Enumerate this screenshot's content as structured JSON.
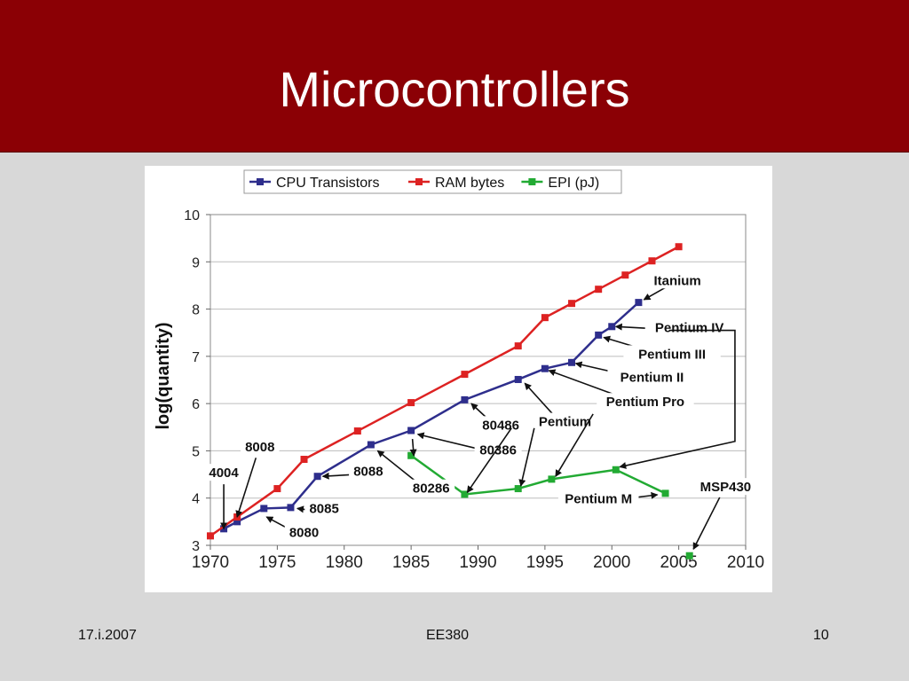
{
  "slide": {
    "title": "Microcontrollers",
    "footer_left": "17.i.2007",
    "footer_center": "EE380",
    "footer_right": "10"
  },
  "colors": {
    "header_bg": "#8b0005",
    "cpu": "#2e2e8c",
    "ram": "#dd2222",
    "epi": "#22aa33"
  },
  "chart_data": {
    "type": "line",
    "ylabel": "log(quantity)",
    "xlabel": "",
    "xlim": [
      1970,
      2010
    ],
    "ylim": [
      3,
      10
    ],
    "x_ticks": [
      "1970",
      "1975",
      "1980",
      "1985",
      "1990",
      "1995",
      "2000",
      "2005",
      "2010"
    ],
    "y_ticks": [
      "3",
      "4",
      "5",
      "6",
      "7",
      "8",
      "9",
      "10"
    ],
    "grid": true,
    "legend": "top",
    "series": [
      {
        "name": "CPU Transistors",
        "color": "#2e2e8c",
        "points": [
          [
            1971,
            3.35
          ],
          [
            1972,
            3.5
          ],
          [
            1974,
            3.78
          ],
          [
            1976,
            3.8
          ],
          [
            1978,
            4.46
          ],
          [
            1982,
            5.13
          ],
          [
            1985,
            5.43
          ],
          [
            1989,
            6.08
          ],
          [
            1993,
            6.51
          ],
          [
            1995,
            6.74
          ],
          [
            1997,
            6.87
          ],
          [
            1999,
            7.45
          ],
          [
            2000,
            7.63
          ],
          [
            2002,
            8.14
          ]
        ]
      },
      {
        "name": "RAM bytes",
        "color": "#dd2222",
        "points": [
          [
            1970,
            3.2
          ],
          [
            1972,
            3.6
          ],
          [
            1975,
            4.2
          ],
          [
            1977,
            4.82
          ],
          [
            1981,
            5.42
          ],
          [
            1985,
            6.02
          ],
          [
            1989,
            6.62
          ],
          [
            1993,
            7.22
          ],
          [
            1995,
            7.82
          ],
          [
            1997,
            8.12
          ],
          [
            1999,
            8.42
          ],
          [
            2001,
            8.72
          ],
          [
            2003,
            9.02
          ],
          [
            2005,
            9.32
          ]
        ]
      },
      {
        "name": "EPI (pJ)",
        "color": "#22aa33",
        "points": [
          [
            1985,
            4.9
          ],
          [
            1989,
            4.08
          ],
          [
            1993,
            4.2
          ],
          [
            1995.5,
            4.4
          ],
          [
            2000.3,
            4.6
          ],
          [
            2004,
            4.1
          ]
        ]
      },
      {
        "name": "MSP430",
        "color": "#22aa33",
        "points": [
          [
            2005.8,
            2.78
          ]
        ]
      }
    ],
    "annotations": [
      {
        "text": "4004",
        "x": 1971,
        "y": 4.48,
        "tx": 1971,
        "ty": 3.35
      },
      {
        "text": "8008",
        "x": 1973.7,
        "y": 5.03,
        "tx": 1972,
        "ty": 3.6
      },
      {
        "text": "8080",
        "x": 1977,
        "y": 3.22,
        "tx": 1974.2,
        "ty": 3.6
      },
      {
        "text": "8085",
        "x": 1978.5,
        "y": 3.72,
        "tx": 1976.5,
        "ty": 3.78
      },
      {
        "text": "8088",
        "x": 1981.8,
        "y": 4.51,
        "tx": 1978.4,
        "ty": 4.46
      },
      {
        "text": "80286",
        "x": 1986.5,
        "y": 4.15,
        "tx": 1982.5,
        "ty": 5.0
      },
      {
        "text": "80386",
        "x": 1991.5,
        "y": 4.96,
        "tx": 1985.5,
        "ty": 5.35
      },
      {
        "text": "80486",
        "x": 1991.7,
        "y": 5.49,
        "tx": 1989.5,
        "ty": 6.0
      },
      {
        "text": "Pentium",
        "x": 1996.5,
        "y": 5.56,
        "tx": 1993.5,
        "ty": 6.43
      },
      {
        "text": "Pentium Pro",
        "x": 2002.5,
        "y": 5.98,
        "tx": 1995.3,
        "ty": 6.7
      },
      {
        "text": "Pentium II",
        "x": 2003,
        "y": 6.5,
        "tx": 1997.3,
        "ty": 6.85
      },
      {
        "text": "Pentium III",
        "x": 2004.5,
        "y": 6.99,
        "tx": 1999.4,
        "ty": 7.4
      },
      {
        "text": "Pentium IV",
        "x": 2005.8,
        "y": 7.55,
        "tx": 2000.3,
        "ty": 7.63
      },
      {
        "text": "Itanium",
        "x": 2004.9,
        "y": 8.55,
        "tx": 2002.4,
        "ty": 8.2
      },
      {
        "text": "Pentium M",
        "x": 1999,
        "y": 3.93,
        "tx": 2003.4,
        "ty": 4.07
      },
      {
        "text": "MSP430",
        "x": 2008.5,
        "y": 4.18,
        "tx": 2006.1,
        "ty": 2.92
      }
    ],
    "extra_arrows": [
      {
        "from": [
          1985.1,
          5.25
        ],
        "to": [
          1985.2,
          4.9
        ]
      },
      {
        "from": [
          1992.5,
          5.48
        ],
        "to": [
          1989.2,
          4.12
        ]
      },
      {
        "from": [
          1994.2,
          5.48
        ],
        "to": [
          1993.2,
          4.26
        ]
      },
      {
        "from": [
          1998.6,
          5.78
        ],
        "to": [
          1995.8,
          4.46
        ]
      }
    ],
    "elbow_arrow": {
      "points": [
        [
          2004.3,
          7.55
        ],
        [
          2009.2,
          7.55
        ],
        [
          2009.2,
          5.2
        ],
        [
          2000.6,
          4.66
        ]
      ]
    }
  }
}
